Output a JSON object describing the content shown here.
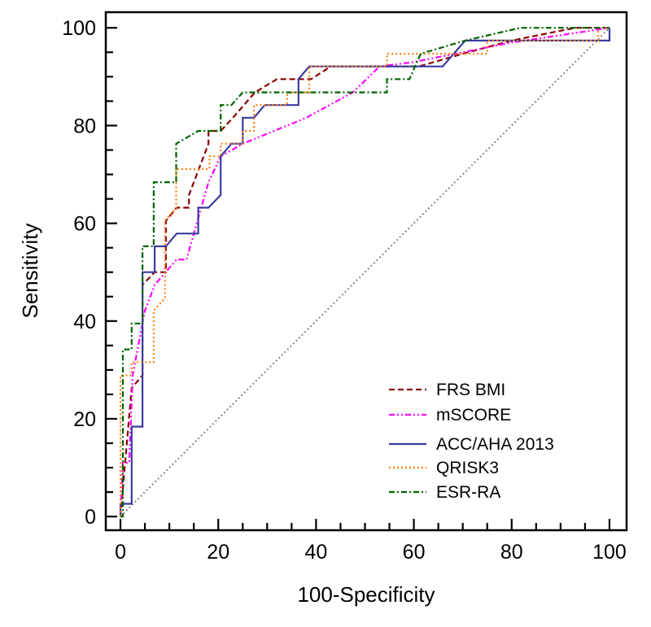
{
  "chart_data": {
    "type": "line",
    "title": "",
    "xlabel": "100-Specificity",
    "ylabel": "Sensitivity",
    "xlim": [
      -3,
      103.5
    ],
    "ylim": [
      -2.8,
      103.2
    ],
    "xticks": [
      0,
      20,
      40,
      60,
      80,
      100
    ],
    "yticks": [
      0,
      20,
      40,
      60,
      80,
      100
    ],
    "xtick_labels": [
      "0",
      "20",
      "40",
      "60",
      "80",
      "100"
    ],
    "ytick_labels": [
      "0",
      "20",
      "40",
      "60",
      "80",
      "100"
    ],
    "minor_tick_step": 5,
    "grid": false,
    "legend_position": "bottom-right",
    "reference_line": {
      "name": "chance",
      "x": [
        0,
        100
      ],
      "y": [
        0,
        100
      ],
      "color": "#888888",
      "style": "dotted"
    },
    "series": [
      {
        "name": "FRS BMI",
        "color": "#8b0000",
        "style": "dashed",
        "x": [
          0,
          2.3,
          2.3,
          4.5,
          4.5,
          7.0,
          9.3,
          9.3,
          11.5,
          14.0,
          14.0,
          18.0,
          18.0,
          20.5,
          23.0,
          27.5,
          32.0,
          36.5,
          39.0,
          43.0,
          54.5,
          61.0,
          70.0,
          80.0,
          93.0,
          100
        ],
        "y": [
          0,
          26.3,
          26.3,
          28.9,
          47.4,
          50.0,
          50.0,
          60.5,
          63.2,
          63.2,
          65.8,
          76.3,
          78.9,
          78.9,
          81.6,
          86.8,
          89.5,
          89.5,
          89.5,
          92.1,
          92.1,
          92.1,
          94.7,
          97.4,
          100,
          100
        ]
      },
      {
        "name": "mSCORE",
        "color": "#ff00ff",
        "style": "dashdotdot",
        "x": [
          0,
          0.5,
          1.8,
          2.5,
          5.0,
          7.0,
          11.5,
          13.5,
          15.0,
          18.0,
          20.5,
          25.0,
          38.0,
          47.5,
          53.0,
          60.0,
          70.0,
          80.0,
          100
        ],
        "y": [
          0,
          11.0,
          11.0,
          29.0,
          42.1,
          47.4,
          52.6,
          52.6,
          57.9,
          68.4,
          73.7,
          76.3,
          81.6,
          86.8,
          92.1,
          93.0,
          95.0,
          97.0,
          100
        ]
      },
      {
        "name": "ACC/AHA 2013",
        "color": "#3a3aa0",
        "style": "solid",
        "x": [
          0,
          0,
          2.3,
          2.3,
          4.5,
          4.5,
          7.0,
          7.0,
          9.3,
          11.5,
          15.9,
          15.9,
          18.0,
          20.5,
          20.5,
          22.7,
          25.0,
          25.0,
          27.3,
          29.5,
          36.4,
          36.4,
          38.6,
          54.5,
          65.9,
          70.5,
          75.0,
          88.6,
          97.7,
          100,
          100
        ],
        "y": [
          0,
          2.6,
          2.6,
          18.4,
          18.4,
          50.0,
          50.0,
          55.3,
          55.3,
          57.9,
          57.9,
          63.2,
          63.2,
          65.8,
          73.7,
          76.3,
          76.3,
          81.6,
          81.6,
          84.2,
          84.2,
          89.5,
          92.1,
          92.1,
          92.1,
          97.4,
          97.4,
          97.4,
          97.4,
          97.4,
          100
        ]
      },
      {
        "name": "QRISK3",
        "color": "#ff7f0e",
        "style": "dotted",
        "x": [
          0,
          0,
          2.3,
          2.3,
          6.8,
          6.8,
          9.1,
          9.1,
          11.4,
          11.4,
          18.2,
          18.2,
          20.5,
          20.5,
          25.0,
          25.0,
          27.3,
          27.3,
          34.1,
          34.1,
          38.6,
          38.6,
          54.5,
          54.5,
          63.6,
          75.0,
          75.0,
          97.7,
          97.7,
          100
        ],
        "y": [
          0,
          28.9,
          28.9,
          31.6,
          31.6,
          42.1,
          44.7,
          60.5,
          63.2,
          71.1,
          71.1,
          73.7,
          73.7,
          76.3,
          76.3,
          78.9,
          78.9,
          84.2,
          84.2,
          86.8,
          86.8,
          92.1,
          92.1,
          94.7,
          94.7,
          94.7,
          97.4,
          97.4,
          100,
          100
        ]
      },
      {
        "name": "ESR-RA",
        "color": "#006400",
        "style": "dashdot",
        "x": [
          0,
          0.5,
          0.5,
          2.3,
          2.3,
          4.5,
          4.5,
          6.8,
          6.8,
          11.4,
          11.4,
          15.9,
          20.5,
          20.5,
          22.7,
          25.0,
          54.5,
          54.5,
          59.1,
          61.4,
          70.5,
          81.8,
          100
        ],
        "y": [
          0,
          0,
          34.2,
          34.2,
          39.5,
          39.5,
          55.3,
          55.3,
          68.4,
          68.4,
          76.3,
          78.9,
          78.9,
          84.2,
          84.2,
          86.8,
          86.8,
          89.5,
          89.5,
          94.7,
          97.4,
          100,
          100
        ]
      }
    ]
  }
}
